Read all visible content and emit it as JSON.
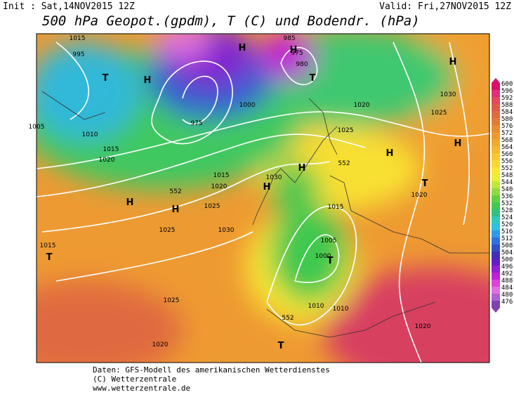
{
  "header": {
    "init": "Init : Sat,14NOV2015 12Z",
    "valid": "Valid: Fri,27NOV2015 12Z",
    "title": "500 hPa Geopot.(gpdm), T (C) und Bodendr. (hPa)"
  },
  "colorbar": {
    "values": [
      600,
      596,
      592,
      588,
      584,
      580,
      576,
      572,
      568,
      564,
      560,
      556,
      552,
      548,
      544,
      540,
      536,
      532,
      528,
      524,
      520,
      516,
      512,
      508,
      504,
      500,
      496,
      492,
      488,
      484,
      480,
      476
    ],
    "colors": [
      "#d8106c",
      "#e0307a",
      "#e04a5a",
      "#e05a48",
      "#e06a40",
      "#e07a38",
      "#e88a30",
      "#ee9830",
      "#f0a830",
      "#f4b830",
      "#f8c830",
      "#fad830",
      "#f8e830",
      "#e8f030",
      "#c0e838",
      "#90dc40",
      "#60d040",
      "#40c850",
      "#30c080",
      "#30c8b8",
      "#30c0e0",
      "#3098e8",
      "#3070e0",
      "#3050c8",
      "#4030b8",
      "#6020c8",
      "#9020d0",
      "#c020d8",
      "#e040d8",
      "#e070e0",
      "#b060d0",
      "#8040b0"
    ]
  },
  "map_labels": [
    "H",
    "H",
    "H",
    "T",
    "T",
    "H",
    "1030",
    "1025",
    "H",
    "H",
    "T",
    "1020",
    "H",
    "H",
    "1025",
    "1030",
    "1025",
    "1015",
    "T",
    "H",
    "H",
    "1030",
    "1015",
    "1005",
    "T",
    "1000",
    "1010",
    "1010",
    "1025",
    "1020",
    "T",
    "1020",
    "1005",
    "1010",
    "1015",
    "1020",
    "1015",
    "1020",
    "1000",
    "1025",
    "1020",
    "985",
    "975",
    "980",
    "1015",
    "995",
    "975",
    "552",
    "552",
    "552"
  ],
  "footer": [
    "Daten: GFS-Modell des amerikanischen Wetterdienstes",
    "(C) Wetterzentrale",
    "www.wetterzentrale.de"
  ]
}
